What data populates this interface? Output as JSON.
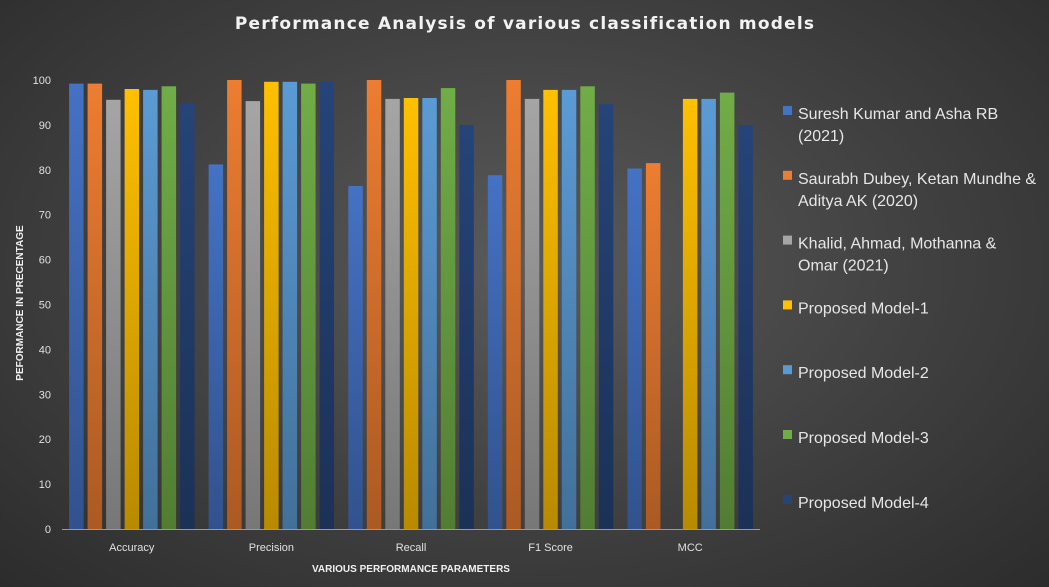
{
  "chart_data": {
    "type": "bar",
    "title": "Performance  Analysis  of  various  classification  models",
    "xlabel": "VARIOUS PERFORMANCE PARAMETERS",
    "ylabel": "PEFORMANCE IN PRECENTAGE",
    "ylim": [
      0,
      100
    ],
    "yticks": [
      0,
      10,
      20,
      30,
      40,
      50,
      60,
      70,
      80,
      90,
      100
    ],
    "grid": false,
    "legend_position": "right",
    "categories": [
      "Accuracy",
      "Precision",
      "Recall",
      "F1 Score",
      "MCC"
    ],
    "series": [
      {
        "name": "Suresh Kumar and Asha RB (2021)",
        "color": "#4472c4",
        "values": [
          99.2,
          81.2,
          76.4,
          78.8,
          80.3
        ]
      },
      {
        "name": "Saurabh Dubey, Ketan Mundhe & Aditya AK (2020)",
        "color": "#ed7d31",
        "values": [
          99.2,
          100,
          100,
          100,
          81.5
        ]
      },
      {
        "name": "Khalid, Ahmad, Mothanna & Omar (2021)",
        "color": "#a5a5a5",
        "values": [
          95.6,
          95.3,
          95.8,
          95.8,
          null
        ]
      },
      {
        "name": "Proposed Model-1",
        "color": "#ffc000",
        "values": [
          98,
          99.6,
          96,
          97.8,
          95.8
        ]
      },
      {
        "name": "Proposed Model-2",
        "color": "#5b9bd5",
        "values": [
          97.8,
          99.6,
          96,
          97.8,
          95.8
        ]
      },
      {
        "name": "Proposed Model-3",
        "color": "#70ad47",
        "values": [
          98.6,
          99.2,
          98.2,
          98.6,
          97.2
        ]
      },
      {
        "name": "Proposed Model-4",
        "color": "#264478",
        "values": [
          94.8,
          99.6,
          90,
          94.6,
          90
        ]
      }
    ]
  }
}
